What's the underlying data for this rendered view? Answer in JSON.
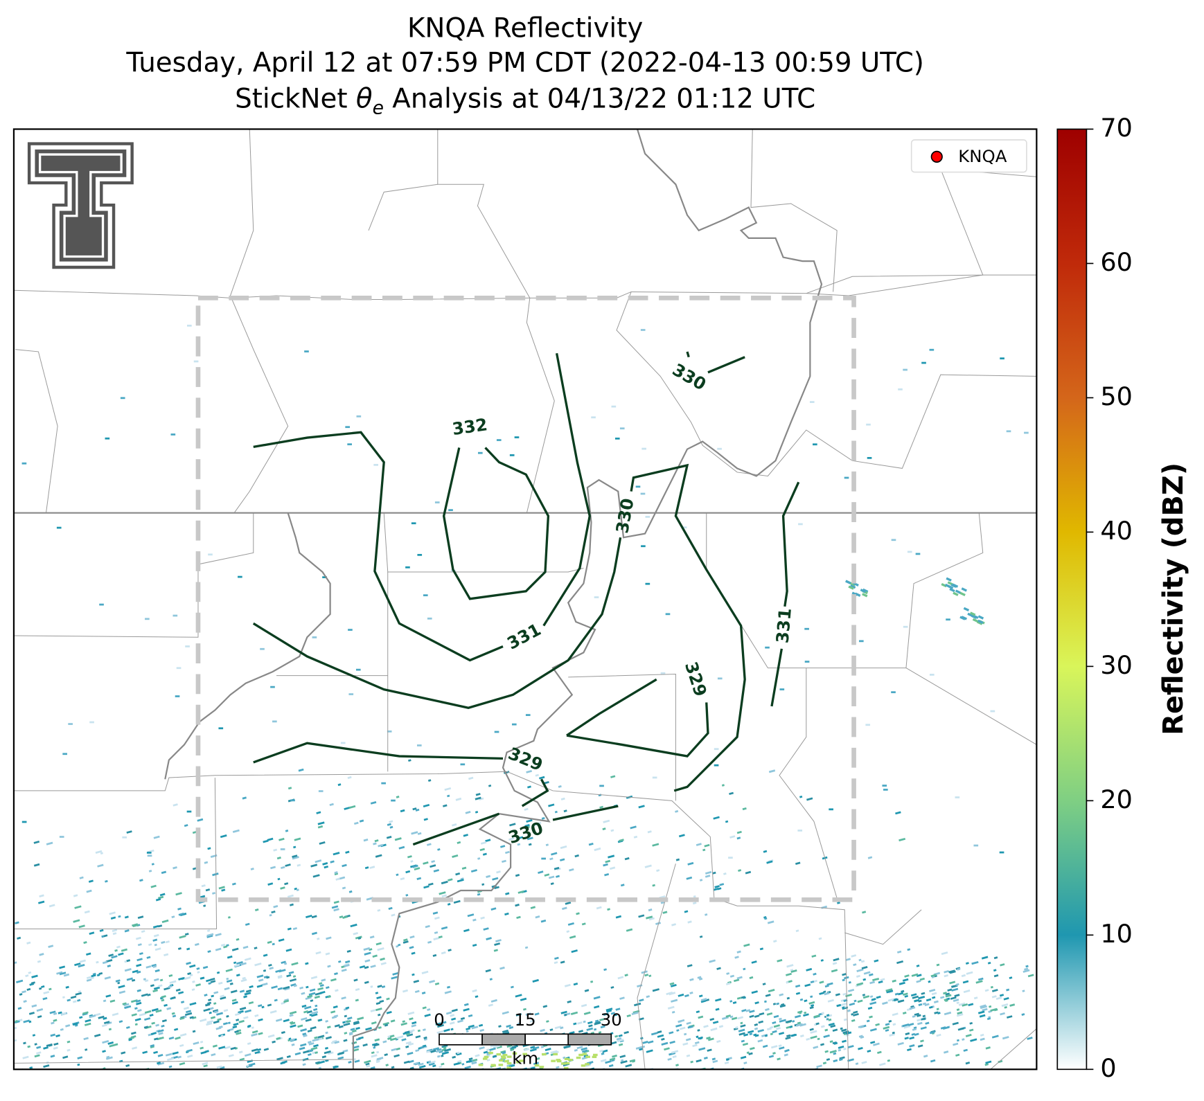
{
  "map": {
    "title": [
      "KNQA Reflectivity",
      "Tuesday, April 12 at 07:59 PM CDT (2022-04-13 00:59 UTC)"
    ],
    "subtitle": {
      "prefix": "StickNet ",
      "symbol": "θ",
      "subscript": "e",
      "rest": " Analysis at 04/13/22 01:12 UTC"
    },
    "legend": {
      "label": "KNQA",
      "color": "#ff0000",
      "corner": "upper right"
    },
    "contour_labels": [
      "332",
      "331",
      "330",
      "330",
      "331",
      "329",
      "329",
      "330"
    ],
    "scale_bar": {
      "ticks": [
        "0",
        "15",
        "30"
      ],
      "unit": "km"
    },
    "colorbar": {
      "label": "Reflectivity (dBZ)",
      "lim": [
        0,
        70
      ],
      "ticks": [
        0,
        10,
        20,
        30,
        40,
        50,
        60,
        70
      ],
      "colors": [
        "#ffffff",
        "#1f97b0",
        "#7fcf83",
        "#d9f55a",
        "#e0b800",
        "#d4661a",
        "#c02a0a",
        "#9e0000"
      ]
    }
  }
}
